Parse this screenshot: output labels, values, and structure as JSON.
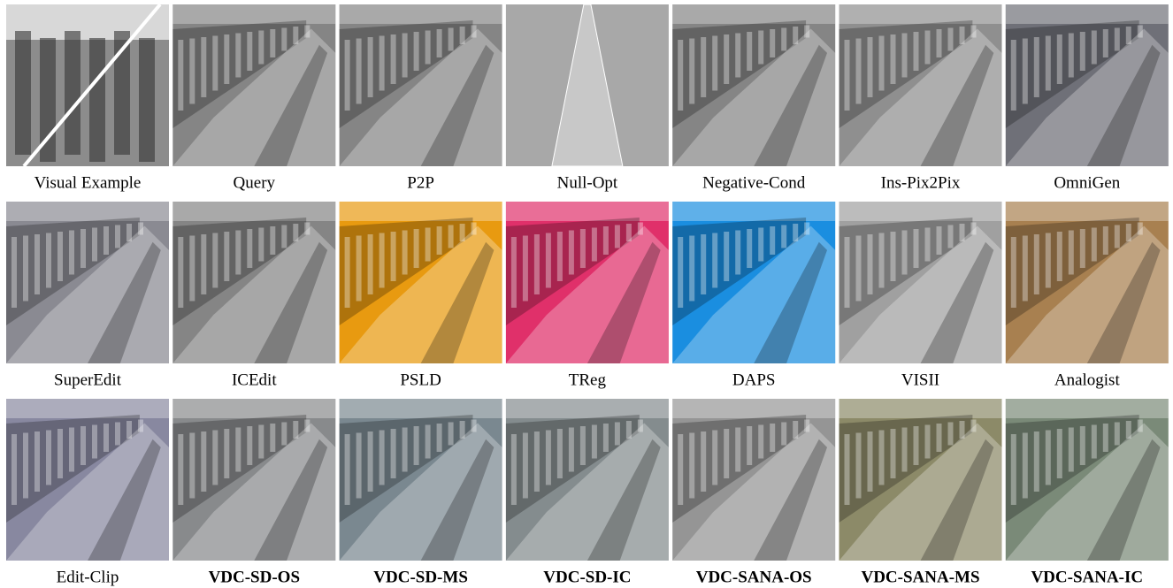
{
  "panels": [
    {
      "label": "Visual Example",
      "color": "#8c8c8c"
    },
    {
      "label": "Query",
      "color": "#858585"
    },
    {
      "label": "P2P",
      "color": "#858585"
    },
    {
      "label": "Null-Opt",
      "color": "#a8a8a8"
    },
    {
      "label": "Negative-Cond",
      "color": "#858585"
    },
    {
      "label": "Ins-Pix2Pix",
      "color": "#8f8f8f"
    },
    {
      "label": "OmniGen",
      "color": "#6f7078"
    },
    {
      "label": "SuperEdit",
      "color": "#8a8a92"
    },
    {
      "label": "ICEdit",
      "color": "#858585"
    },
    {
      "label": "PSLD",
      "color": "#e89a10"
    },
    {
      "label": "TReg",
      "color": "#e0306a"
    },
    {
      "label": "DAPS",
      "color": "#1a8ee0"
    },
    {
      "label": "VISII",
      "color": "#a0a0a0"
    },
    {
      "label": "Analogist",
      "color": "#a88050"
    },
    {
      "label": "Edit-Clip",
      "color": "#8888a0"
    },
    {
      "label": "VDC-SD-OS",
      "color": "#888a8c",
      "bold": true
    },
    {
      "label": "VDC-SD-MS",
      "color": "#7a8890",
      "bold": true
    },
    {
      "label": "VDC-SD-IC",
      "color": "#848c8e",
      "bold": true
    },
    {
      "label": "VDC-SANA-OS",
      "color": "#959595",
      "bold": true
    },
    {
      "label": "VDC-SANA-MS",
      "color": "#8c8a68",
      "bold": true
    },
    {
      "label": "VDC-SANA-IC",
      "color": "#7a8a78",
      "bold": true
    }
  ]
}
